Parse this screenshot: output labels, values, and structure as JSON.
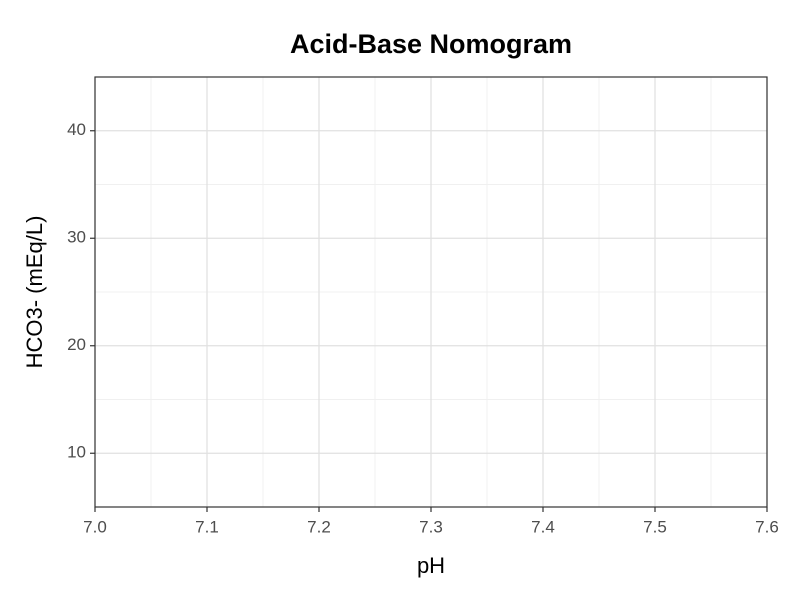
{
  "chart_data": {
    "type": "scatter",
    "title": "Acid-Base Nomogram",
    "x_label": "pH",
    "y_label": "HCO3- (mEq/L)",
    "xlim": [
      7.0,
      7.6
    ],
    "xticks": [
      {
        "value": 7.0,
        "label": "7.0"
      },
      7.1,
      7.2,
      7.3,
      7.4,
      7.5,
      7.6
    ],
    "ylim": [
      5,
      45
    ],
    "yticks": [
      10,
      20,
      30,
      40
    ],
    "grid": true,
    "minor_grid": true,
    "series": []
  }
}
